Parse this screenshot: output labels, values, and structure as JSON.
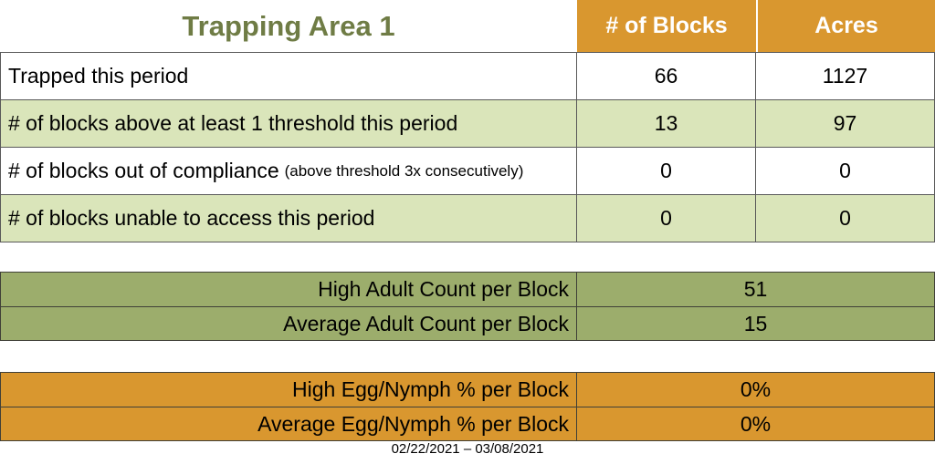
{
  "title": "Trapping Area 1",
  "date_range": "02/22/2021 – 03/08/2021",
  "colors": {
    "orange": "#D9972F",
    "light_green": "#DAE5BA",
    "olive": "#9CAD6C",
    "title_text": "#6F7C45",
    "header_text": "#FFFFFF",
    "main_border": "#595959",
    "section_border": "#404038"
  },
  "main_table": {
    "columns": {
      "blocks": "# of Blocks",
      "acres": "Acres"
    },
    "rows": [
      {
        "label": "Trapped this period",
        "note": "",
        "blocks": "66",
        "acres": "1127"
      },
      {
        "label": "# of blocks above at least 1 threshold this period",
        "note": "",
        "blocks": "13",
        "acres": "97"
      },
      {
        "label": "# of blocks out of compliance",
        "note": "(above threshold 3x consecutively)",
        "blocks": "0",
        "acres": "0"
      },
      {
        "label": "# of blocks unable to access this period",
        "note": "",
        "blocks": "0",
        "acres": "0"
      }
    ]
  },
  "adult_section": {
    "rows": [
      {
        "label": "High Adult Count per Block",
        "value": "51"
      },
      {
        "label": "Average Adult Count per Block",
        "value": "15"
      }
    ]
  },
  "egg_section": {
    "rows": [
      {
        "label": "High Egg/Nymph % per Block",
        "value": "0%"
      },
      {
        "label": "Average Egg/Nymph % per Block",
        "value": "0%"
      }
    ]
  }
}
